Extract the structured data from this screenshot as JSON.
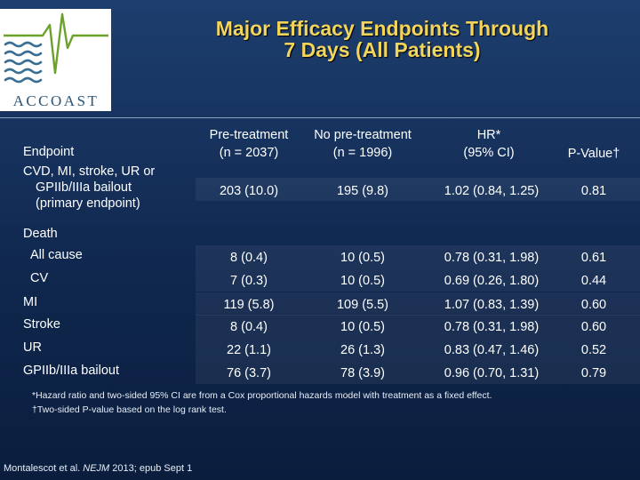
{
  "logo": {
    "text": "ACCOAST"
  },
  "title": {
    "line1": "Major Efficacy Endpoints Through",
    "line2": "7 Days (All Patients)"
  },
  "header": {
    "endpoint": "Endpoint",
    "pre_line1": "Pre-treatment",
    "pre_line2": "(n = 2037)",
    "nopre_line1": "No pre-treatment",
    "nopre_line2": "(n = 1996)",
    "hr_line1": "HR*",
    "hr_line2": "(95% CI)",
    "p": "P-Value†"
  },
  "primary": {
    "label_line1": "CVD, MI, stroke, UR or",
    "label_line2": "GPIIb/IIIa bailout",
    "label_line3": "(primary endpoint)",
    "pre": "203 (10.0)",
    "nopre": "195 (9.8)",
    "hr": "1.02 (0.84, 1.25)",
    "p": "0.81"
  },
  "death_label": "Death",
  "rows": [
    {
      "label": "All cause",
      "pre": "8 (0.4)",
      "nopre": "10 (0.5)",
      "hr": "0.78 (0.31, 1.98)",
      "p": "0.61"
    },
    {
      "label": "CV",
      "pre": "7 (0.3)",
      "nopre": "10 (0.5)",
      "hr": "0.69 (0.26, 1.80)",
      "p": "0.44"
    },
    {
      "label": "MI",
      "pre": "119 (5.8)",
      "nopre": "109 (5.5)",
      "hr": "1.07 (0.83, 1.39)",
      "p": "0.60"
    },
    {
      "label": "Stroke",
      "pre": "8 (0.4)",
      "nopre": "10 (0.5)",
      "hr": "0.78 (0.31, 1.98)",
      "p": "0.60"
    },
    {
      "label": "UR",
      "pre": "22 (1.1)",
      "nopre": "26 (1.3)",
      "hr": "0.83 (0.47, 1.46)",
      "p": "0.52"
    },
    {
      "label": "GPIIb/IIIa bailout",
      "pre": "76 (3.7)",
      "nopre": "78 (3.9)",
      "hr": "0.96 (0.70, 1.31)",
      "p": "0.79"
    }
  ],
  "footnotes": {
    "f1": "*Hazard ratio and two-sided 95% CI are from a Cox proportional hazards model with treatment as a fixed effect.",
    "f2": "†Two-sided P-value based on the log rank test."
  },
  "citation": {
    "authors": "Montalescot et al. ",
    "journal": "NEJM",
    "rest": " 2013; epub Sept 1"
  }
}
